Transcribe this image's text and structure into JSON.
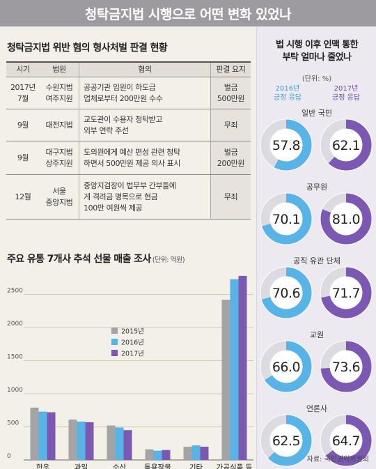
{
  "header": {
    "title": "청탁금지법 시행으로 어떤 변화 있었나"
  },
  "cases_table": {
    "title": "청탁금지법 위반 혐의 형사처벌 판결 현황",
    "columns": [
      "시기",
      "법원",
      "혐의",
      "판결 요지"
    ],
    "rows": [
      {
        "date": "2017년\n7월",
        "court": "수원지법\n여주지원",
        "charge": "공공기관 임원이 하도급\n업체로부터 200만원 수수",
        "ruling": "벌금\n500만원"
      },
      {
        "date": "9월",
        "court": "대전지법",
        "charge": "교도관이 수용자 청탁받고\n외부 연락 주선",
        "ruling": "무죄"
      },
      {
        "date": "9월",
        "court": "대구지법\n상주지원",
        "charge": "도의원에게 예산 편성 관련 청탁\n하면서 500만원 제공 의사 표시",
        "ruling": "벌금\n200만원"
      },
      {
        "date": "12월",
        "court": "서울\n중앙지법",
        "charge": "중앙지검장이 법무부 간부들에\n게 격려금 명목으로 현금\n100만 여원씩 제공",
        "ruling": "무죄"
      }
    ]
  },
  "chart_data": [
    {
      "type": "bar",
      "title": "주요 유통 7개사 추석 선물 매출 조사",
      "unit": "(단위: 억원)",
      "categories": [
        "한우",
        "과일",
        "수산",
        "특용작물",
        "기타\n농·축산",
        "가공식품 등"
      ],
      "yticks": [
        "0",
        "500",
        "1000",
        "1500",
        "2000",
        "2500"
      ],
      "ylim": [
        0,
        2800
      ],
      "series": [
        {
          "name": "2015년",
          "color": "#a4a4a6",
          "values": [
            790,
            610,
            520,
            160,
            200,
            2420
          ]
        },
        {
          "name": "2016년",
          "color": "#58b4e6",
          "values": [
            730,
            580,
            490,
            140,
            220,
            2730
          ]
        },
        {
          "name": "2017년",
          "color": "#7b58b2",
          "values": [
            720,
            570,
            450,
            150,
            200,
            2780
          ]
        }
      ],
      "legend_position": "middle-left"
    },
    {
      "type": "pie",
      "title": "법 시행 이후 인맥 통한\n부탁 얼마나 줄었나",
      "unit": "(단위: %)",
      "legend": [
        {
          "label": "2016년\n긍정 응답",
          "color": "#58b4e6"
        },
        {
          "label": "2017년\n긍정 응답",
          "color": "#7b58b2"
        }
      ],
      "groups": [
        {
          "name": "일반 국민",
          "values": [
            57.8,
            62.1
          ]
        },
        {
          "name": "공무원",
          "values": [
            70.1,
            81.0
          ]
        },
        {
          "name": "공직 유관 단체",
          "values": [
            70.6,
            71.7
          ]
        },
        {
          "name": "교원",
          "values": [
            66.0,
            73.6
          ]
        },
        {
          "name": "언론사",
          "values": [
            62.5,
            64.7
          ]
        }
      ]
    }
  ],
  "source": "자료: 국민권익위원회"
}
